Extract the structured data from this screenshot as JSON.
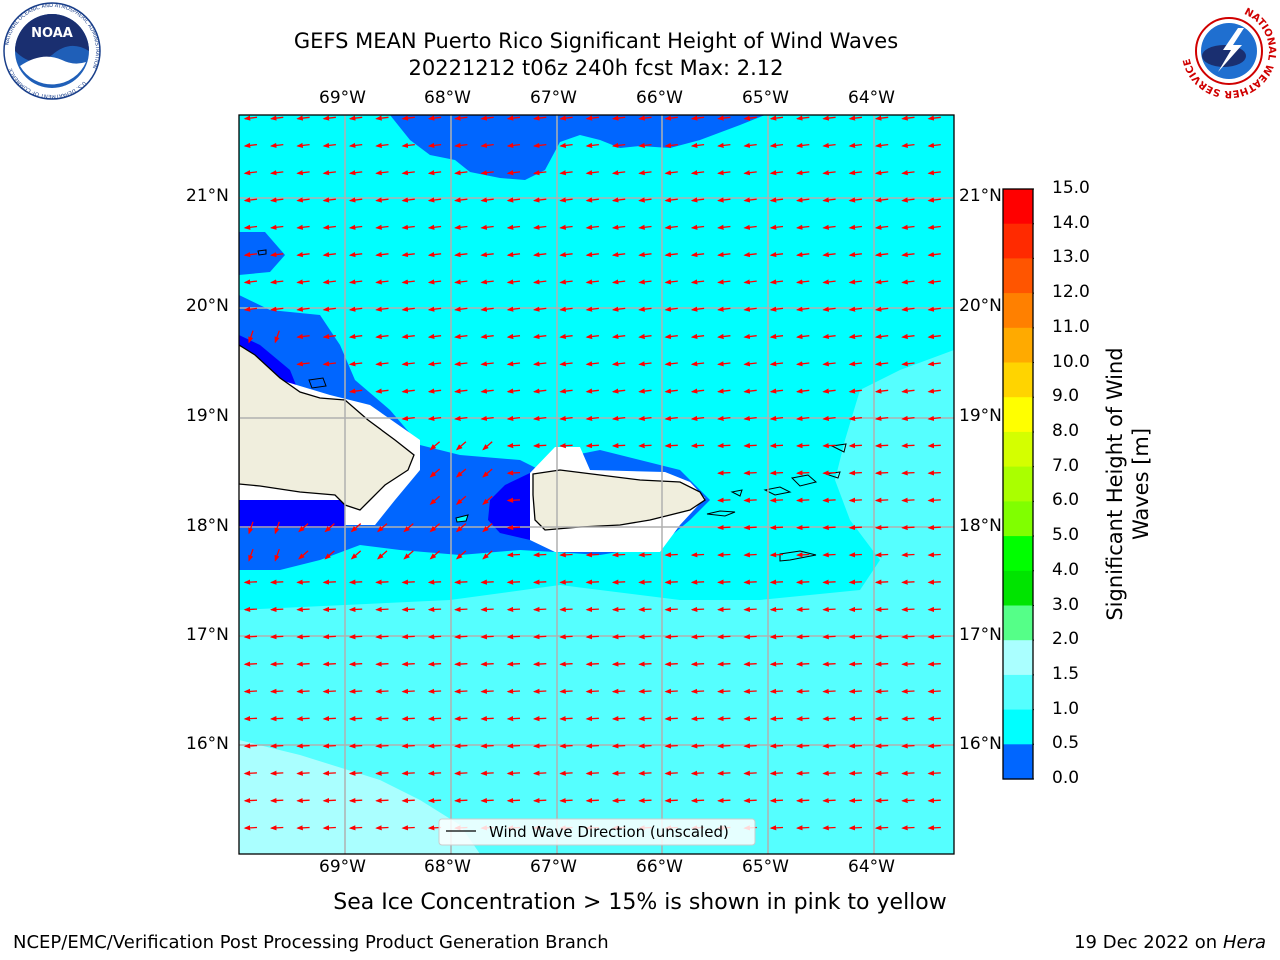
{
  "header": {
    "title_line1": "GEFS MEAN Puerto Rico Significant Height of Wind Waves",
    "title_line2": "20221212 t06z 240h fcst   Max: 2.12"
  },
  "logos": {
    "left": "noaa-logo",
    "right": "national-weather-service-logo",
    "noaa_text": "NOAA",
    "noaa_ring_text": "NATIONAL OCEANIC AND ATMOSPHERIC ADMINISTRATION",
    "noaa_ring_text_bottom": "U.S. DEPARTMENT OF COMMERCE",
    "nws_ring_text": "NATIONAL WEATHER SERVICE"
  },
  "map": {
    "lon_labels": [
      "69°W",
      "68°W",
      "67°W",
      "66°W",
      "65°W",
      "64°W"
    ],
    "lat_labels": [
      "21°N",
      "20°N",
      "19°N",
      "18°N",
      "17°N",
      "16°N"
    ],
    "legend_label": "Wind Wave Direction (unscaled)",
    "arrow_color": "#ff0000",
    "fill_colors": {
      "band_0_0_5": "#0000ff",
      "band_0_5_1_0": "#0066ff",
      "band_1_0_1_5": "#00ffff",
      "band_1_5_2_0": "#55ffff",
      "band_2_0_3_0": "#aaffff",
      "land": "#f0eedd"
    }
  },
  "colorbar": {
    "label": "Significant Height of Wind Waves [m]",
    "label_line1": "Significant Height of Wind",
    "label_line2": "Waves [m]",
    "ticks": [
      "15.0",
      "14.0",
      "13.0",
      "12.0",
      "11.0",
      "10.0",
      "9.0",
      "8.0",
      "7.0",
      "6.0",
      "5.0",
      "4.0",
      "3.0",
      "2.0",
      "1.5",
      "1.0",
      "0.5",
      "0.0"
    ],
    "colors_top_to_bottom": [
      "#ff0000",
      "#ff2a00",
      "#ff5500",
      "#ff8000",
      "#ffaa00",
      "#ffd400",
      "#ffff00",
      "#d4ff00",
      "#aaff00",
      "#80ff00",
      "#00ff00",
      "#00e400",
      "#55ff88",
      "#aaffff",
      "#55ffff",
      "#00ffff",
      "#0066ff",
      "#0000ff"
    ]
  },
  "footer": {
    "note": "Sea Ice Concentration > 15% is shown in pink to yellow",
    "left": "NCEP/EMC/Verification Post Processing Product Generation Branch",
    "right_date": "19 Dec 2022 on",
    "right_machine": "Hera"
  }
}
